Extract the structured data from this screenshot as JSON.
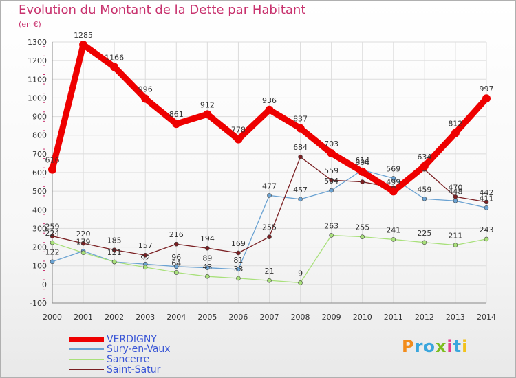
{
  "title": "Evolution du Montant de la Dette par Habitant",
  "unit": "(en €)",
  "logo": "Proxiti",
  "colors": {
    "title": "#c8326e",
    "verdigny": "#ee0000",
    "sury": "#6aa2d2",
    "sancerre": "#a8e07a",
    "saint_satur": "#7a1f22"
  },
  "chart_data": {
    "type": "line",
    "title": "Evolution du Montant de la Dette par Habitant",
    "ylabel": "(en €)",
    "xlabel": "",
    "x": [
      "2000",
      "2001",
      "2002",
      "2003",
      "2004",
      "2005",
      "2006",
      "2007",
      "2008",
      "2009",
      "2010",
      "2011",
      "2012",
      "2013",
      "2014"
    ],
    "ylim": [
      -100,
      1300
    ],
    "yticks": [
      -100,
      0,
      100,
      200,
      300,
      400,
      500,
      600,
      700,
      800,
      900,
      1000,
      1100,
      1200,
      1300
    ],
    "grid": true,
    "legend": "bottom-left",
    "series": [
      {
        "name": "VERDIGNY",
        "values": [
          616,
          1285,
          1166,
          996,
          861,
          912,
          778,
          936,
          837,
          703,
          604,
          499,
          634,
          812,
          997
        ],
        "labels": [
          "616",
          "1285",
          "1166",
          "996",
          "861",
          "912",
          "778",
          "936",
          "837",
          "703",
          "604",
          "499",
          "634",
          "812",
          "997"
        ]
      },
      {
        "name": "Sury-en-Vaux",
        "values": [
          122,
          179,
          121,
          109,
          96,
          89,
          81,
          477,
          457,
          504,
          614,
          569,
          459,
          448,
          411
        ],
        "labels": [
          "122",
          "179",
          "121",
          "",
          "96",
          "89",
          "81",
          "477",
          "457",
          "504",
          "614",
          "569",
          "459",
          "448",
          "411"
        ]
      },
      {
        "name": "Sancerre",
        "values": [
          224,
          170,
          121,
          92,
          64,
          43,
          33,
          21,
          9,
          263,
          255,
          241,
          225,
          211,
          243
        ],
        "labels": [
          "224",
          "",
          "",
          "92",
          "64",
          "43",
          "33",
          "21",
          "9",
          "263",
          "255",
          "241",
          "225",
          "211",
          "243"
        ]
      },
      {
        "name": "Saint-Satur",
        "values": [
          259,
          220,
          185,
          157,
          216,
          194,
          169,
          255,
          684,
          559,
          550,
          519,
          617,
          470,
          442
        ],
        "labels": [
          "259",
          "220",
          "185",
          "157",
          "216",
          "194",
          "169",
          "255",
          "684",
          "559",
          "",
          "",
          "",
          "470",
          "442"
        ]
      }
    ]
  }
}
